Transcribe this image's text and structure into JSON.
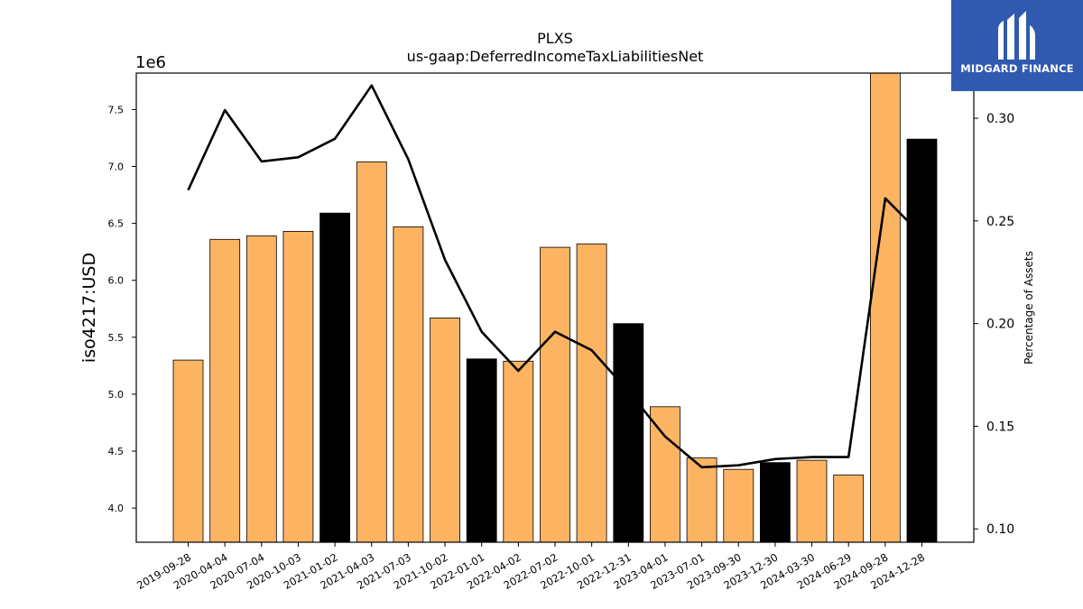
{
  "brand": {
    "name": "MIDGARD FINANCE",
    "color": "#2f5ab0",
    "icon": "midgard-logo-icon"
  },
  "chart_data": {
    "type": "bar",
    "title": "PLXS",
    "subtitle": "us-gaap:DeferredIncomeTaxLiabilitiesNet",
    "ylabel": "iso4217:USD",
    "ylabel_right": "Percentage of Assets",
    "y_offset_label": "1e6",
    "ylim": [
      3.7,
      7.82
    ],
    "ylim_right": [
      0.0935,
      0.322
    ],
    "yticks": [
      "4.0",
      "4.5",
      "5.0",
      "5.5",
      "6.0",
      "6.5",
      "7.0",
      "7.5"
    ],
    "yticks_right": [
      "0.10",
      "0.15",
      "0.20",
      "0.25",
      "0.30"
    ],
    "categories": [
      "2019-09-28",
      "2020-04-04",
      "2020-07-04",
      "2020-10-03",
      "2021-01-02",
      "2021-04-03",
      "2021-07-03",
      "2021-10-02",
      "2022-01-01",
      "2022-04-02",
      "2022-07-02",
      "2022-10-01",
      "2022-12-31",
      "2023-04-01",
      "2023-07-01",
      "2023-09-30",
      "2023-12-30",
      "2024-03-30",
      "2024-06-29",
      "2024-09-28",
      "2024-12-28"
    ],
    "values": [
      5.3,
      6.36,
      6.39,
      6.43,
      6.59,
      7.04,
      6.47,
      5.67,
      5.31,
      5.29,
      6.29,
      6.32,
      5.62,
      4.89,
      4.44,
      4.34,
      4.4,
      4.42,
      4.29,
      7.85,
      7.24
    ],
    "bar_colors": [
      "#fdb462",
      "#fdb462",
      "#fdb462",
      "#fdb462",
      "#000000",
      "#fdb462",
      "#fdb462",
      "#fdb462",
      "#000000",
      "#fdb462",
      "#fdb462",
      "#fdb462",
      "#000000",
      "#fdb462",
      "#fdb462",
      "#fdb462",
      "#000000",
      "#fdb462",
      "#fdb462",
      "#fdb462",
      "#000000"
    ],
    "line_values": [
      0.265,
      0.304,
      0.279,
      0.281,
      0.29,
      0.316,
      0.28,
      0.231,
      0.196,
      0.177,
      0.196,
      0.187,
      0.167,
      0.145,
      0.13,
      0.131,
      0.134,
      0.135,
      0.135,
      0.261,
      0.243
    ],
    "line_color": "#000000",
    "grid": false,
    "legend": "none"
  }
}
